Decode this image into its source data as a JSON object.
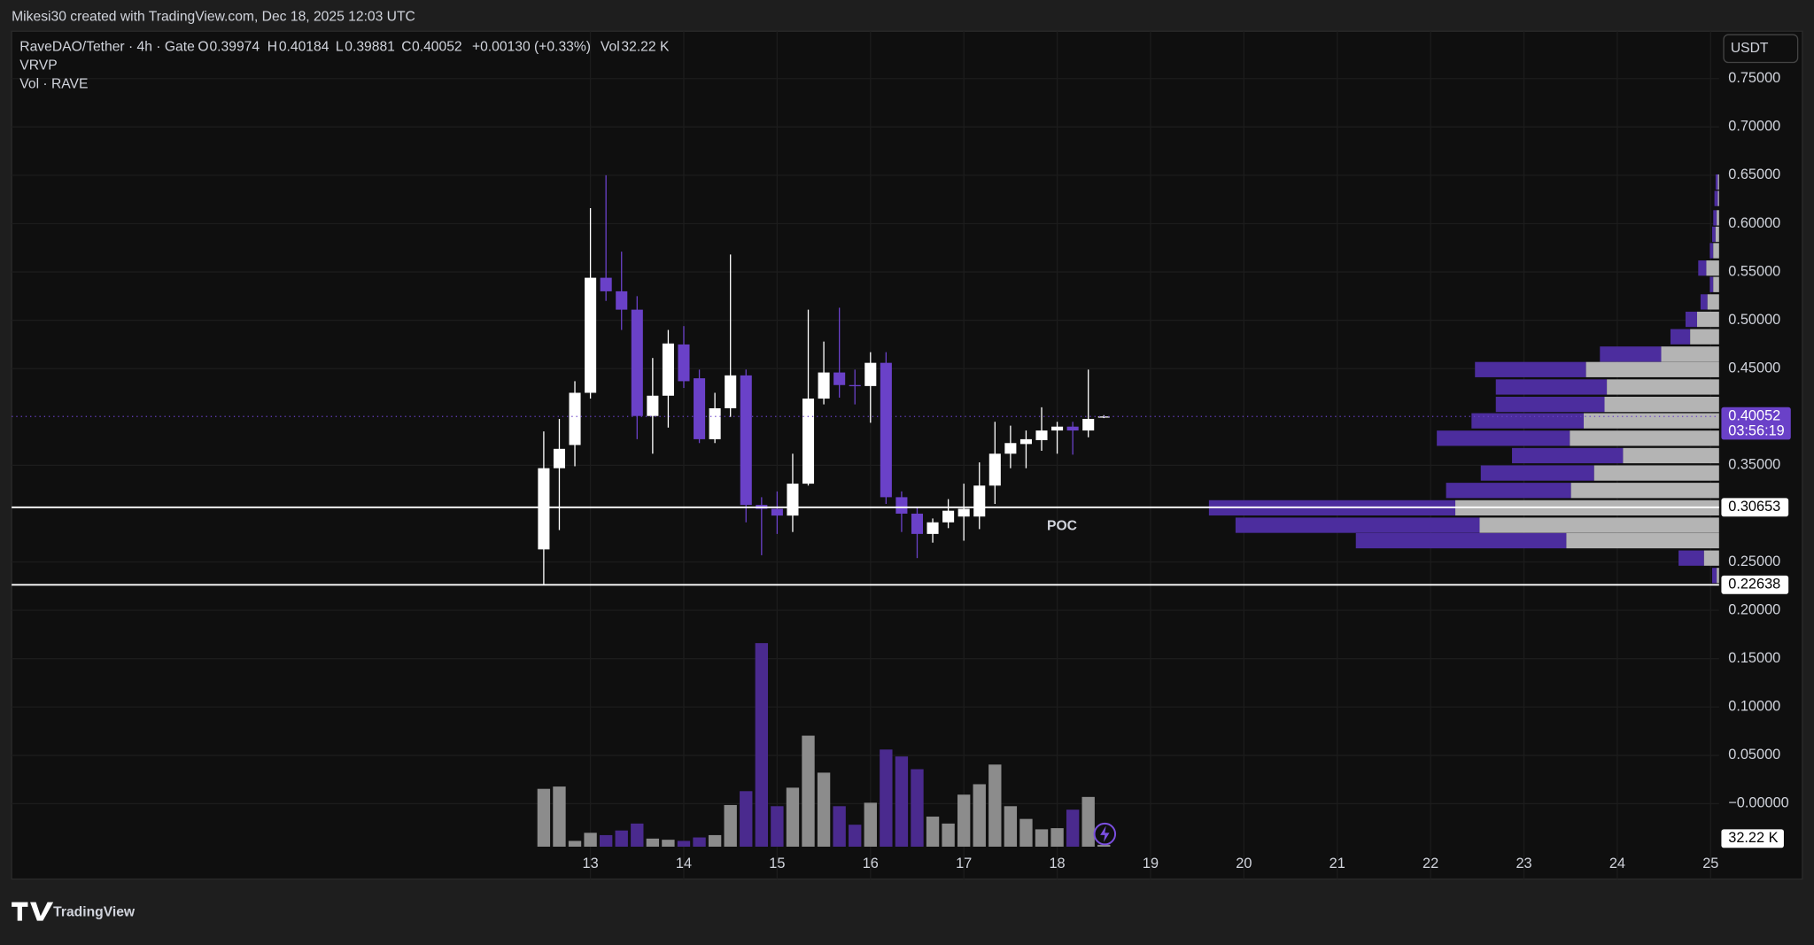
{
  "header": {
    "credit": "Mikesi30 created with TradingView.com, Dec 18, 2025 12:03 UTC",
    "symbol": "RaveDAO/Tether · 4h · Gate",
    "open_label": "O",
    "high_label": "H",
    "low_label": "L",
    "close_label": "C",
    "change": "+0.00130 (+0.33%)",
    "volume_title": "Vol",
    "volume_label": "32.22 K",
    "indicators": [
      "VRVP",
      "Vol · RAVE"
    ],
    "currency": "USDT",
    "countdown": "03:56:19",
    "poc": "POC",
    "brand": "TradingView"
  },
  "chart_data": {
    "type": "candlestick",
    "x": [
      12.5,
      12.6667,
      12.8333,
      13,
      13.1667,
      13.3333,
      13.5,
      13.6667,
      13.8333,
      14,
      14.1667,
      14.3333,
      14.5,
      14.6667,
      14.8333,
      15,
      15.1667,
      15.3333,
      15.5,
      15.6667,
      15.8333,
      16,
      16.1667,
      16.3333,
      16.5,
      16.6667,
      16.8333,
      17,
      17.1667,
      17.3333,
      17.5,
      17.6667,
      17.8333,
      18,
      18.1667,
      18.3333,
      18.5
    ],
    "open": [
      0.263,
      0.347,
      0.371,
      0.425,
      0.544,
      0.53,
      0.511,
      0.401,
      0.422,
      0.475,
      0.44,
      0.377,
      0.409,
      0.443,
      0.309,
      0.305,
      0.298,
      0.331,
      0.419,
      0.446,
      0.433,
      0.432,
      0.456,
      0.317,
      0.3,
      0.279,
      0.291,
      0.297,
      0.297,
      0.329,
      0.362,
      0.372,
      0.376,
      0.386,
      0.39,
      0.386,
      0.39974
    ],
    "high": [
      0.385,
      0.398,
      0.437,
      0.616,
      0.65,
      0.571,
      0.525,
      0.461,
      0.49,
      0.494,
      0.449,
      0.425,
      0.568,
      0.449,
      0.317,
      0.323,
      0.362,
      0.511,
      0.478,
      0.513,
      0.449,
      0.467,
      0.467,
      0.323,
      0.307,
      0.295,
      0.315,
      0.331,
      0.353,
      0.395,
      0.391,
      0.386,
      0.41,
      0.395,
      0.395,
      0.449,
      0.40184
    ],
    "low": [
      0.22638,
      0.283,
      0.349,
      0.419,
      0.52,
      0.49,
      0.377,
      0.362,
      0.389,
      0.43,
      0.373,
      0.373,
      0.4,
      0.291,
      0.257,
      0.279,
      0.281,
      0.329,
      0.413,
      0.42,
      0.413,
      0.394,
      0.31,
      0.281,
      0.254,
      0.27,
      0.285,
      0.272,
      0.284,
      0.31,
      0.347,
      0.347,
      0.365,
      0.362,
      0.361,
      0.379,
      0.39881
    ],
    "close": [
      0.347,
      0.367,
      0.425,
      0.544,
      0.53,
      0.511,
      0.401,
      0.422,
      0.476,
      0.437,
      0.377,
      0.409,
      0.443,
      0.309,
      0.305,
      0.298,
      0.331,
      0.419,
      0.446,
      0.433,
      0.432,
      0.456,
      0.317,
      0.3,
      0.279,
      0.291,
      0.303,
      0.305,
      0.329,
      0.362,
      0.373,
      0.377,
      0.386,
      0.39,
      0.386,
      0.398,
      0.40052
    ],
    "volume": [
      1000,
      1040,
      100,
      240,
      200,
      280,
      400,
      140,
      120,
      100,
      160,
      200,
      720,
      960,
      3520,
      700,
      1020,
      1920,
      1280,
      700,
      380,
      760,
      1680,
      1560,
      1340,
      520,
      400,
      900,
      1080,
      1420,
      700,
      480,
      300,
      320,
      640,
      860,
      32.22
    ],
    "up_color": "#ffffff",
    "down_color": "#6a41c8",
    "volume_up_color": "#8c8c8c",
    "volume_down_color": "#4a2a8e",
    "profile": {
      "price": [
        0.643,
        0.626,
        0.606,
        0.589,
        0.572,
        0.554,
        0.537,
        0.519,
        0.501,
        0.483,
        0.465,
        0.449,
        0.431,
        0.413,
        0.396,
        0.378,
        0.36,
        0.342,
        0.324,
        0.306,
        0.288,
        0.272,
        0.254,
        0.236
      ],
      "down": [
        20,
        30,
        30,
        30,
        30,
        70,
        30,
        60,
        100,
        170,
        530,
        960,
        960,
        940,
        970,
        1150,
        960,
        980,
        1080,
        2130,
        2110,
        1820,
        220,
        40
      ],
      "up": [
        10,
        10,
        20,
        30,
        50,
        110,
        50,
        100,
        190,
        250,
        500,
        1150,
        970,
        990,
        1170,
        1290,
        830,
        1080,
        1280,
        2280,
        2070,
        1320,
        130,
        20
      ],
      "down_color": "#4c2d9e",
      "up_color": "#b4b4b4"
    },
    "lines": [
      0.30653,
      0.22638
    ],
    "xlim": [
      6.8,
      25.09
    ],
    "xticks": [
      13,
      14,
      15,
      16,
      17,
      18,
      19,
      20,
      21,
      22,
      23,
      24,
      25
    ],
    "ylim": [
      -0.078,
      0.799
    ],
    "yticks": [
      {
        "value": 0.75,
        "label": "0.75000"
      },
      {
        "value": 0.7,
        "label": "0.70000"
      },
      {
        "value": 0.65,
        "label": "0.65000"
      },
      {
        "value": 0.6,
        "label": "0.60000"
      },
      {
        "value": 0.55,
        "label": "0.55000"
      },
      {
        "value": 0.5,
        "label": "0.50000"
      },
      {
        "value": 0.45,
        "label": "0.45000"
      },
      {
        "value": 0.35,
        "label": "0.35000"
      },
      {
        "value": 0.25,
        "label": "0.25000"
      },
      {
        "value": 0.2,
        "label": "0.20000"
      },
      {
        "value": 0.15,
        "label": "0.15000"
      },
      {
        "value": 0.1,
        "label": "0.10000"
      },
      {
        "value": 0.05,
        "label": "0.05000"
      },
      {
        "value": 0,
        "label": "−0.00000"
      }
    ],
    "grid": true
  }
}
